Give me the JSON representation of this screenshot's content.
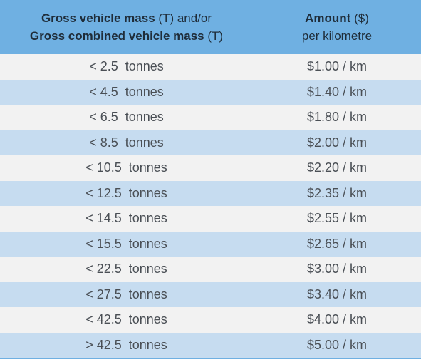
{
  "header": {
    "left_line1_bold": "Gross vehicle mass",
    "left_line1_rest": " (T) and/or",
    "left_line2_bold": "Gross combined vehicle mass",
    "left_line2_rest": " (T)",
    "right_line1_bold": "Amount",
    "right_line1_rest": " ($)",
    "right_line2": "per kilometre"
  },
  "rows": [
    {
      "mass": "< 2.5  tonnes",
      "amount": "$1.00 / km"
    },
    {
      "mass": "< 4.5  tonnes",
      "amount": "$1.40 / km"
    },
    {
      "mass": "< 6.5  tonnes",
      "amount": "$1.80 / km"
    },
    {
      "mass": "< 8.5  tonnes",
      "amount": "$2.00 / km"
    },
    {
      "mass": "< 10.5  tonnes",
      "amount": "$2.20 / km"
    },
    {
      "mass": "< 12.5  tonnes",
      "amount": "$2.35 / km"
    },
    {
      "mass": "< 14.5  tonnes",
      "amount": "$2.55 / km"
    },
    {
      "mass": "< 15.5  tonnes",
      "amount": "$2.65 / km"
    },
    {
      "mass": "< 22.5  tonnes",
      "amount": "$3.00 / km"
    },
    {
      "mass": "< 27.5  tonnes",
      "amount": "$3.40 / km"
    },
    {
      "mass": "< 42.5  tonnes",
      "amount": "$4.00 / km"
    },
    {
      "mass": "> 42.5  tonnes",
      "amount": "$5.00 / km"
    }
  ],
  "colors": {
    "header_bg": "#6fb0e2",
    "row_light": "#f2f2f2",
    "row_blue": "#c6dcf0",
    "text": "#4a4f55"
  }
}
